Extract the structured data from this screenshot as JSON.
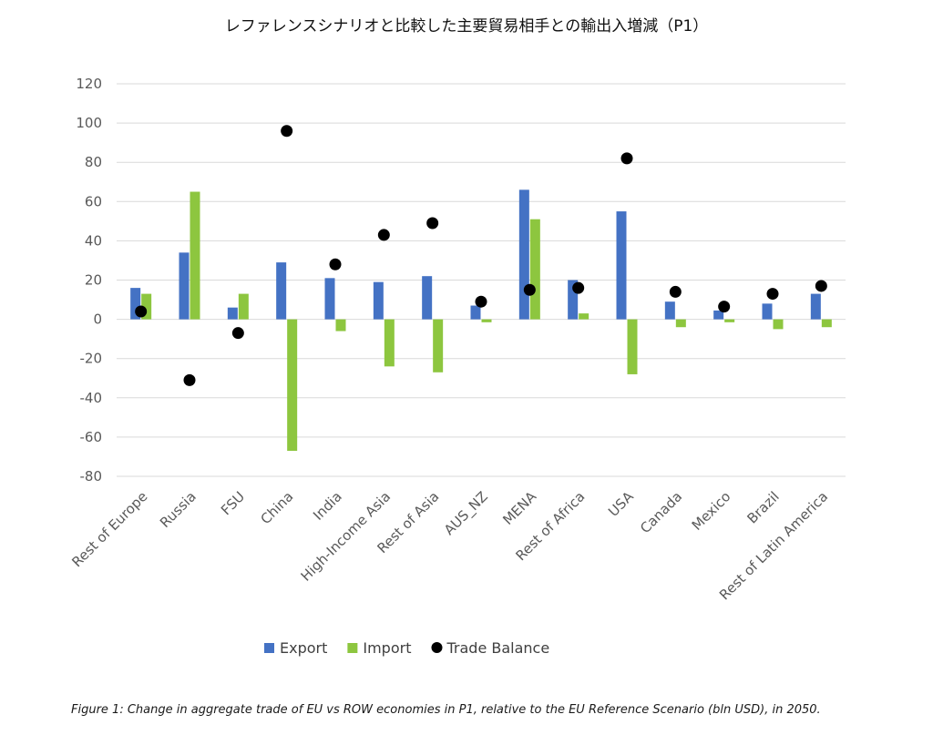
{
  "chart_data": {
    "type": "bar",
    "title": "レファレンスシナリオと比較した主要貿易相手との輸出入増減（P1）",
    "categories": [
      "Rest of Europe",
      "Russia",
      "FSU",
      "China",
      "India",
      "High-Income Asia",
      "Rest of Asia",
      "AUS_NZ",
      "MENA",
      "Rest of Africa",
      "USA",
      "Canada",
      "Mexico",
      "Brazil",
      "Rest of Latin America"
    ],
    "series": [
      {
        "name": "Export",
        "kind": "bar",
        "color": "#4472C4",
        "values": [
          16,
          34,
          6,
          29,
          21,
          19,
          22,
          7,
          66,
          20,
          55,
          9,
          4.5,
          8,
          13
        ]
      },
      {
        "name": "Import",
        "kind": "bar",
        "color": "#8DC63F",
        "values": [
          13,
          65,
          13,
          -67,
          -6,
          -24,
          -27,
          -1.5,
          51,
          3,
          -28,
          -4,
          -1.5,
          -5,
          -4
        ]
      },
      {
        "name": "Trade Balance",
        "kind": "marker",
        "color": "#000000",
        "values": [
          4,
          -31,
          -7,
          96,
          28,
          43,
          49,
          9,
          15,
          16,
          82,
          14,
          6.5,
          13,
          17
        ]
      }
    ],
    "yticks": [
      "120",
      "100",
      "80",
      "60",
      "40",
      "20",
      "0",
      "-20",
      "-40",
      "-60",
      "-80"
    ],
    "ylim": [
      -80,
      120
    ],
    "grid": true,
    "legend_position": "bottom",
    "xlabel": "",
    "ylabel": ""
  },
  "caption": "Figure 1: Change in aggregate trade of EU vs ROW economies in P1, relative to the EU Reference Scenario (bln USD), in 2050."
}
